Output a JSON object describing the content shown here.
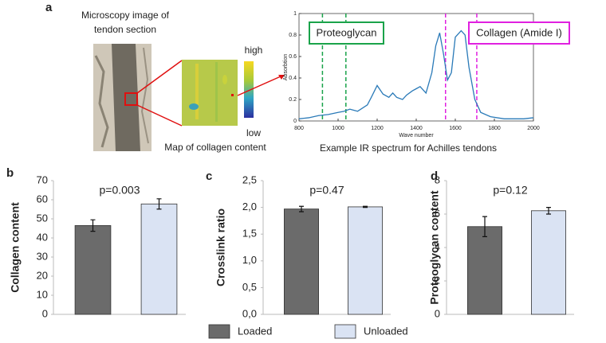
{
  "panel_a": {
    "label": "a",
    "microscopy_caption": [
      "Microscopy image of",
      "tendon section"
    ],
    "map_caption": "Map of collagen content",
    "colorbar_high": "high",
    "colorbar_low": "low"
  },
  "legend": [
    {
      "name": "Loaded",
      "color": "#6b6b6b"
    },
    {
      "name": "Unloaded",
      "color": "#dae3f3"
    }
  ],
  "chart_data": [
    {
      "type": "line",
      "caption": "Example IR spectrum for Achilles tendons",
      "x_label": "Wave number",
      "y_label": "Absorbtion",
      "x": [
        800,
        850,
        900,
        950,
        1000,
        1030,
        1060,
        1080,
        1100,
        1150,
        1170,
        1200,
        1230,
        1260,
        1280,
        1300,
        1330,
        1350,
        1380,
        1400,
        1420,
        1450,
        1480,
        1500,
        1520,
        1540,
        1560,
        1580,
        1600,
        1630,
        1650,
        1670,
        1700,
        1730,
        1780,
        1850,
        1950,
        2000
      ],
      "series": [
        {
          "color": "#2a7ab8",
          "values": [
            0.02,
            0.03,
            0.05,
            0.06,
            0.08,
            0.09,
            0.11,
            0.1,
            0.09,
            0.15,
            0.22,
            0.33,
            0.25,
            0.22,
            0.26,
            0.22,
            0.2,
            0.24,
            0.28,
            0.3,
            0.32,
            0.26,
            0.45,
            0.7,
            0.82,
            0.62,
            0.38,
            0.45,
            0.78,
            0.84,
            0.8,
            0.5,
            0.2,
            0.08,
            0.04,
            0.02,
            0.02,
            0.03
          ]
        }
      ],
      "xlim": [
        800,
        2000
      ],
      "xticks": [
        800,
        1000,
        1200,
        1400,
        1600,
        1800,
        2000
      ],
      "ylim": [
        0,
        1
      ],
      "yticks": [
        0,
        0.2,
        0.4,
        0.6,
        0.8,
        1
      ],
      "annotations": [
        {
          "label": "Proteoglycan",
          "color": "#1aa34a",
          "lines": [
            920,
            1040
          ]
        },
        {
          "label": "Collagen (Amide I)",
          "color": "#e020e0",
          "lines": [
            1550,
            1710
          ]
        }
      ]
    },
    {
      "type": "bar",
      "panel": "b",
      "annotation": "p=0.003",
      "y_label": "Collagen content",
      "values": [
        46.5,
        57.8
      ],
      "errors": [
        3,
        2.7
      ],
      "ylim": [
        0,
        70
      ],
      "yticks": [
        0,
        10,
        20,
        30,
        40,
        50,
        60,
        70
      ]
    },
    {
      "type": "bar",
      "panel": "c",
      "annotation": "p=0.47",
      "y_label": "Crosslink ratio",
      "values": [
        1.97,
        2.01
      ],
      "errors": [
        0.05,
        0.01
      ],
      "ylim": [
        0,
        2.5
      ],
      "yticks": [
        {
          "value": 0,
          "label": "0,0"
        },
        {
          "value": 0.5,
          "label": "0,5"
        },
        {
          "value": 1,
          "label": "1,0"
        },
        {
          "value": 1.5,
          "label": "1,5"
        },
        {
          "value": 2,
          "label": "2,0"
        },
        {
          "value": 2.5,
          "label": "2,5"
        }
      ]
    },
    {
      "type": "bar",
      "panel": "d",
      "annotation": "p=0.12",
      "y_label": "Proteoglycan content",
      "values": [
        5.25,
        6.2
      ],
      "errors": [
        0.6,
        0.2
      ],
      "ylim": [
        0,
        8
      ],
      "yticks": [
        0,
        2,
        4,
        6,
        8
      ]
    }
  ]
}
